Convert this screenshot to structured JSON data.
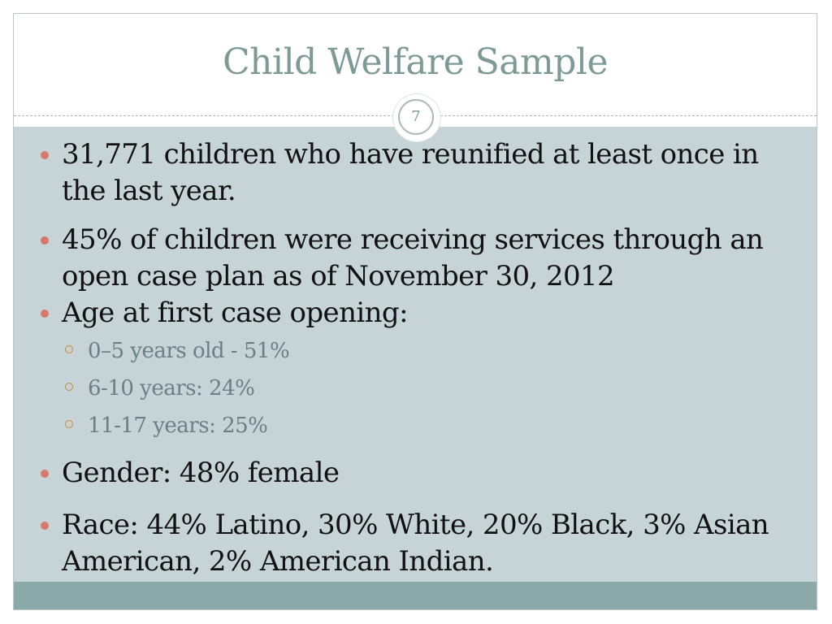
{
  "slide": {
    "title": "Child Welfare Sample",
    "page_number": "7"
  },
  "bullets": [
    {
      "text": "31,771 children who have reunified at least once in the last year."
    },
    {
      "text": "45%  of children were receiving services through an open case plan as of  November 30, 2012"
    },
    {
      "text": "Age at first case opening:",
      "sub": [
        {
          "text": "0–5 years old - 51%"
        },
        {
          "text": "6-10 years: 24%"
        },
        {
          "text": "11-17 years: 25%"
        }
      ]
    },
    {
      "text": "Gender: 48% female"
    },
    {
      "text": "Race: 44% Latino, 30% White, 20% Black, 3% Asian American, 2% American Indian."
    }
  ],
  "colors": {
    "title": "#7e9a98",
    "panel": "#c6d3d7",
    "footer": "#8ba9a8",
    "bullet": "#d9776b",
    "sub_bullet": "#c98a35"
  }
}
